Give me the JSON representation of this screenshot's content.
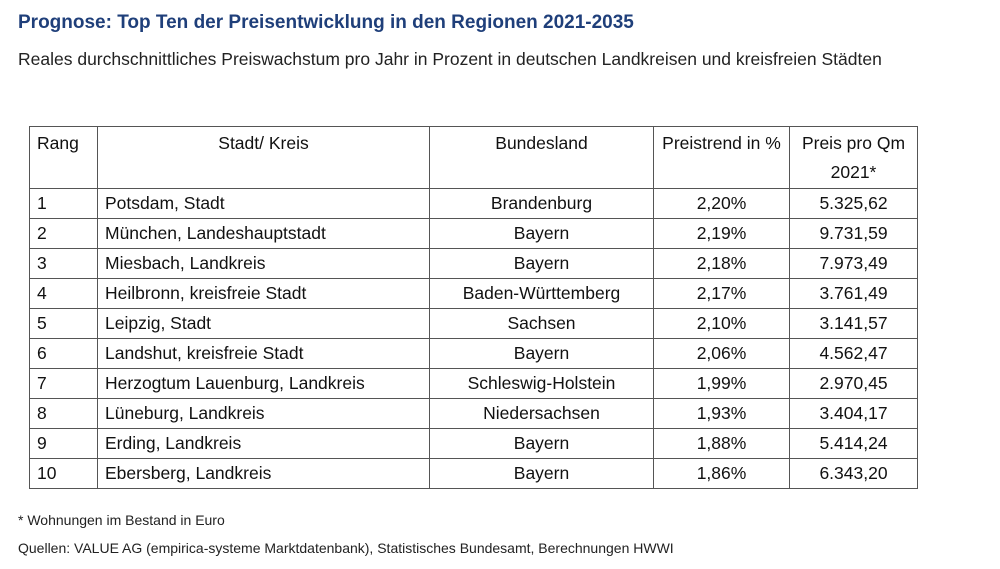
{
  "title": "Prognose: Top Ten der Preisentwicklung in den Regionen 2021-2035",
  "subtitle": "Reales durchschnittliches Preiswachstum pro Jahr in Prozent in deutschen Landkreisen und kreisfreien Städten",
  "table": {
    "headers": {
      "rang": "Rang",
      "stadt": "Stadt/ Kreis",
      "bundesland": "Bundesland",
      "preistrend": "Preistrend in %",
      "preis": "Preis pro Qm 2021*"
    },
    "rows": [
      {
        "rang": "1",
        "stadt": "Potsdam, Stadt",
        "bundesland": "Brandenburg",
        "preistrend": "2,20%",
        "preis": "5.325,62"
      },
      {
        "rang": "2",
        "stadt": "München, Landeshauptstadt",
        "bundesland": "Bayern",
        "preistrend": "2,19%",
        "preis": "9.731,59"
      },
      {
        "rang": "3",
        "stadt": "Miesbach, Landkreis",
        "bundesland": "Bayern",
        "preistrend": "2,18%",
        "preis": "7.973,49"
      },
      {
        "rang": "4",
        "stadt": "Heilbronn, kreisfreie Stadt",
        "bundesland": "Baden-Württemberg",
        "preistrend": "2,17%",
        "preis": "3.761,49"
      },
      {
        "rang": "5",
        "stadt": "Leipzig, Stadt",
        "bundesland": "Sachsen",
        "preistrend": "2,10%",
        "preis": "3.141,57"
      },
      {
        "rang": "6",
        "stadt": "Landshut, kreisfreie Stadt",
        "bundesland": "Bayern",
        "preistrend": "2,06%",
        "preis": "4.562,47"
      },
      {
        "rang": "7",
        "stadt": "Herzogtum Lauenburg, Landkreis",
        "bundesland": "Schleswig-Holstein",
        "preistrend": "1,99%",
        "preis": "2.970,45"
      },
      {
        "rang": "8",
        "stadt": "Lüneburg, Landkreis",
        "bundesland": "Niedersachsen",
        "preistrend": "1,93%",
        "preis": "3.404,17"
      },
      {
        "rang": "9",
        "stadt": "Erding, Landkreis",
        "bundesland": "Bayern",
        "preistrend": "1,88%",
        "preis": "5.414,24"
      },
      {
        "rang": "10",
        "stadt": "Ebersberg, Landkreis",
        "bundesland": "Bayern",
        "preistrend": "1,86%",
        "preis": "6.343,20"
      }
    ]
  },
  "footnote": "* Wohnungen im Bestand in Euro",
  "sources": "Quellen: VALUE AG (empirica-systeme Marktdatenbank), Statistisches Bundesamt, Berechnungen HWWI",
  "colors": {
    "title": "#1f3f7a",
    "text": "#111111",
    "border": "#555555"
  }
}
